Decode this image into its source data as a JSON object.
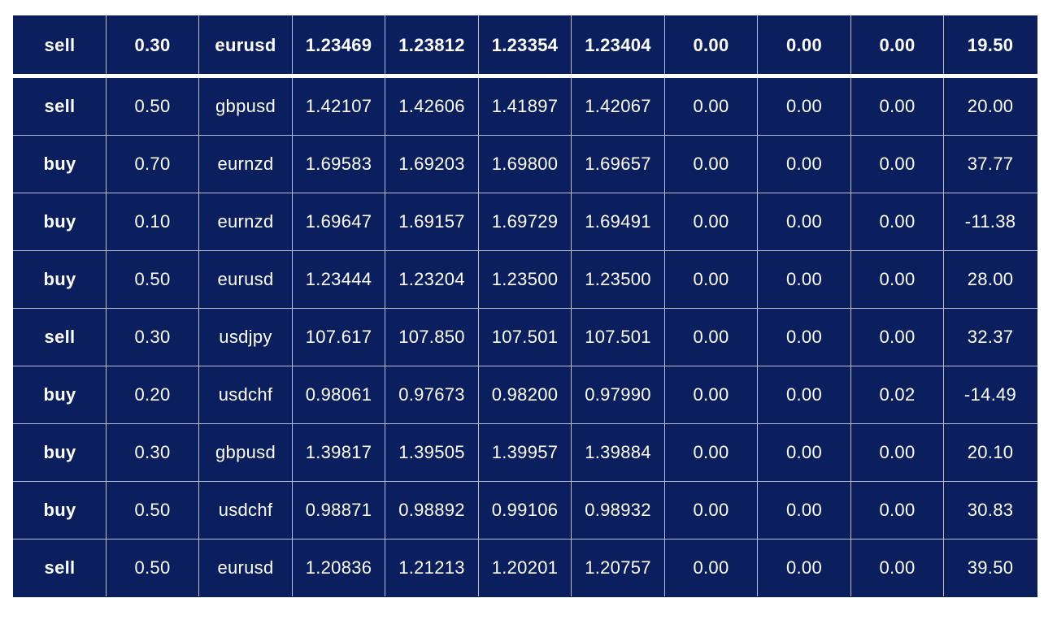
{
  "colors": {
    "cell_background": "#0b1f5e",
    "text": "#ffffff",
    "grid_line": "#b8c0d8"
  },
  "rows": [
    [
      "sell",
      "0.30",
      "eurusd",
      "1.23469",
      "1.23812",
      "1.23354",
      "1.23404",
      "0.00",
      "0.00",
      "0.00",
      "19.50"
    ],
    [
      "sell",
      "0.50",
      "gbpusd",
      "1.42107",
      "1.42606",
      "1.41897",
      "1.42067",
      "0.00",
      "0.00",
      "0.00",
      "20.00"
    ],
    [
      "buy",
      "0.70",
      "eurnzd",
      "1.69583",
      "1.69203",
      "1.69800",
      "1.69657",
      "0.00",
      "0.00",
      "0.00",
      "37.77"
    ],
    [
      "buy",
      "0.10",
      "eurnzd",
      "1.69647",
      "1.69157",
      "1.69729",
      "1.69491",
      "0.00",
      "0.00",
      "0.00",
      "-11.38"
    ],
    [
      "buy",
      "0.50",
      "eurusd",
      "1.23444",
      "1.23204",
      "1.23500",
      "1.23500",
      "0.00",
      "0.00",
      "0.00",
      "28.00"
    ],
    [
      "sell",
      "0.30",
      "usdjpy",
      "107.617",
      "107.850",
      "107.501",
      "107.501",
      "0.00",
      "0.00",
      "0.00",
      "32.37"
    ],
    [
      "buy",
      "0.20",
      "usdchf",
      "0.98061",
      "0.97673",
      "0.98200",
      "0.97990",
      "0.00",
      "0.00",
      "0.02",
      "-14.49"
    ],
    [
      "buy",
      "0.30",
      "gbpusd",
      "1.39817",
      "1.39505",
      "1.39957",
      "1.39884",
      "0.00",
      "0.00",
      "0.00",
      "20.10"
    ],
    [
      "buy",
      "0.50",
      "usdchf",
      "0.98871",
      "0.98892",
      "0.99106",
      "0.98932",
      "0.00",
      "0.00",
      "0.00",
      "30.83"
    ],
    [
      "sell",
      "0.50",
      "eurusd",
      "1.20836",
      "1.21213",
      "1.20201",
      "1.20757",
      "0.00",
      "0.00",
      "0.00",
      "39.50"
    ]
  ]
}
